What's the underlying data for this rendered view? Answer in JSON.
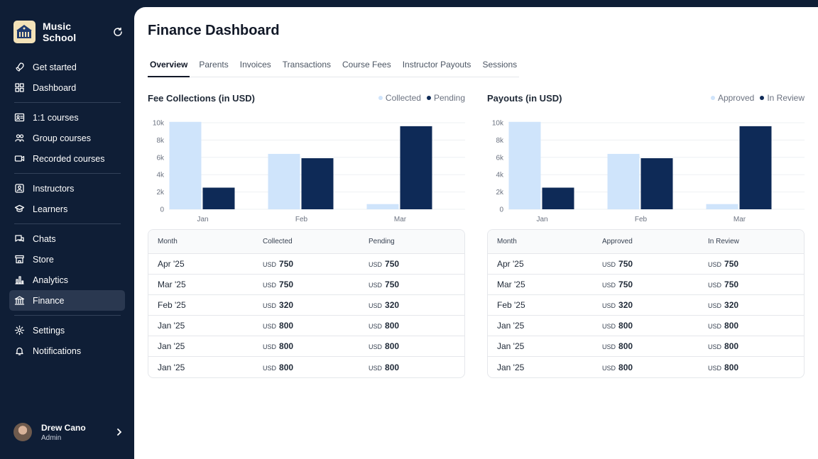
{
  "app": {
    "name": "Music School"
  },
  "sidebar": {
    "groups": [
      [
        {
          "label": "Get started",
          "icon": "rocket-icon"
        },
        {
          "label": "Dashboard",
          "icon": "grid-icon"
        }
      ],
      [
        {
          "label": "1:1 courses",
          "icon": "contact-card-icon"
        },
        {
          "label": "Group courses",
          "icon": "users-icon"
        },
        {
          "label": "Recorded courses",
          "icon": "video-icon"
        }
      ],
      [
        {
          "label": "Instructors",
          "icon": "id-badge-icon"
        },
        {
          "label": "Learners",
          "icon": "student-icon"
        }
      ],
      [
        {
          "label": "Chats",
          "icon": "chat-icon"
        },
        {
          "label": "Store",
          "icon": "store-icon"
        },
        {
          "label": "Analytics",
          "icon": "bar-chart-icon"
        },
        {
          "label": "Finance",
          "icon": "bank-icon",
          "active": true
        }
      ],
      [
        {
          "label": "Settings",
          "icon": "gear-icon"
        },
        {
          "label": "Notifications",
          "icon": "bell-icon"
        }
      ]
    ]
  },
  "user": {
    "name": "Drew Cano",
    "role": "Admin"
  },
  "page": {
    "title": "Finance Dashboard"
  },
  "tabs": [
    {
      "label": "Overview",
      "active": true
    },
    {
      "label": "Parents"
    },
    {
      "label": "Invoices"
    },
    {
      "label": "Transactions"
    },
    {
      "label": "Course Fees"
    },
    {
      "label": "Instructor Payouts"
    },
    {
      "label": "Sessions"
    }
  ],
  "colors": {
    "light_series": "#cfe4fb",
    "dark_series": "#0e2a57"
  },
  "chart_data": [
    {
      "type": "bar",
      "title": "Fee Collections (in USD)",
      "categories": [
        "Jan",
        "Feb",
        "Mar"
      ],
      "series": [
        {
          "name": "Collected",
          "values": [
            10100,
            6400,
            600
          ]
        },
        {
          "name": "Pending",
          "values": [
            2500,
            5900,
            9600
          ]
        }
      ],
      "ylim": [
        0,
        10000
      ],
      "yticks": [
        "0",
        "2k",
        "4k",
        "6k",
        "8k",
        "10k"
      ],
      "grid": true,
      "legend": "top-right"
    },
    {
      "type": "bar",
      "title": "Payouts (in USD)",
      "categories": [
        "Jan",
        "Feb",
        "Mar"
      ],
      "series": [
        {
          "name": "Approved",
          "values": [
            10100,
            6400,
            600
          ]
        },
        {
          "name": "In Review",
          "values": [
            2500,
            5900,
            9600
          ]
        }
      ],
      "ylim": [
        0,
        10000
      ],
      "yticks": [
        "0",
        "2k",
        "4k",
        "6k",
        "8k",
        "10k"
      ],
      "grid": true,
      "legend": "top-right"
    }
  ],
  "tables": [
    {
      "headers": [
        "Month",
        "Collected",
        "Pending"
      ],
      "rows": [
        [
          "Apr '25",
          "750",
          "750"
        ],
        [
          "Mar '25",
          "750",
          "750"
        ],
        [
          "Feb '25",
          "320",
          "320"
        ],
        [
          "Jan '25",
          "800",
          "800"
        ],
        [
          "Jan '25",
          "800",
          "800"
        ],
        [
          "Jan '25",
          "800",
          "800"
        ]
      ],
      "currency": "USD"
    },
    {
      "headers": [
        "Month",
        "Approved",
        "In Review"
      ],
      "rows": [
        [
          "Apr '25",
          "750",
          "750"
        ],
        [
          "Mar '25",
          "750",
          "750"
        ],
        [
          "Feb '25",
          "320",
          "320"
        ],
        [
          "Jan '25",
          "800",
          "800"
        ],
        [
          "Jan '25",
          "800",
          "800"
        ],
        [
          "Jan '25",
          "800",
          "800"
        ]
      ],
      "currency": "USD"
    }
  ]
}
